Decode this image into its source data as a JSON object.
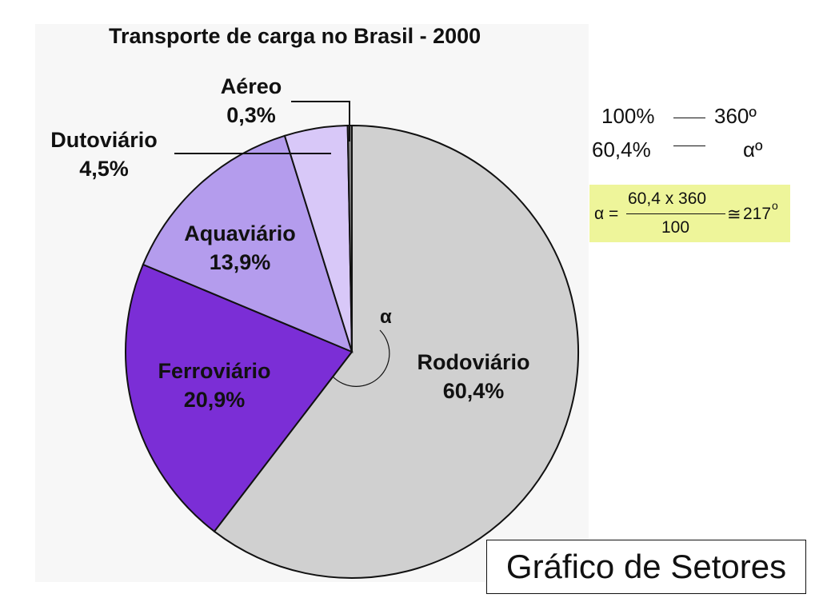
{
  "chart_data": {
    "type": "pie",
    "title": "Transporte de carga no Brasil - 2000",
    "slices": [
      {
        "name": "Rodoviário",
        "value": 60.4,
        "label_value": "60,4%",
        "color": "#d0d0d0"
      },
      {
        "name": "Ferroviário",
        "value": 20.9,
        "label_value": "20,9%",
        "color": "#7b2ed6"
      },
      {
        "name": "Aquaviário",
        "value": 13.9,
        "label_value": "13,9%",
        "color": "#b49ced"
      },
      {
        "name": "Dutoviário",
        "value": 4.5,
        "label_value": "4,5%",
        "color": "#d8c8f8"
      },
      {
        "name": "Aéreo",
        "value": 0.3,
        "label_value": "0,3%",
        "color": "#808080"
      }
    ],
    "angle_marker": "α"
  },
  "proportion": {
    "row1_left": "100%",
    "row1_right": "360º",
    "row2_left": "60,4%",
    "row2_right": "αº"
  },
  "formula": {
    "lhs": "α =",
    "numerator": "60,4 x 360",
    "denominator": "100",
    "approx": "≅",
    "result": "217",
    "result_sup": "o"
  },
  "caption": "Gráfico de Setores"
}
